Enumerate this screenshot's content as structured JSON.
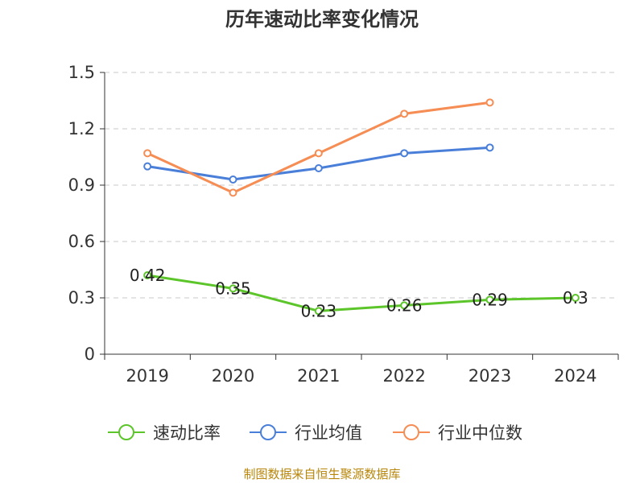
{
  "chart_data": {
    "type": "line",
    "title": "历年速动比率变化情况",
    "categories": [
      "2019",
      "2020",
      "2021",
      "2022",
      "2023",
      "2024"
    ],
    "ylim": [
      0,
      1.5
    ],
    "yticks": [
      "0",
      "0.3",
      "0.6",
      "0.9",
      "1.2",
      "1.5"
    ],
    "grid": true,
    "legend_position": "bottom",
    "series": [
      {
        "name": "速动比率",
        "color": "#5cc52a",
        "values": [
          0.42,
          0.35,
          0.23,
          0.26,
          0.29,
          0.3
        ],
        "labels": [
          "0.42",
          "0.35",
          "0.23",
          "0.26",
          "0.29",
          "0.3"
        ]
      },
      {
        "name": "行业均值",
        "color": "#4a7fd9",
        "values": [
          1.0,
          0.93,
          0.99,
          1.07,
          1.1,
          null
        ]
      },
      {
        "name": "行业中位数",
        "color": "#f58d54",
        "values": [
          1.07,
          0.86,
          1.07,
          1.28,
          1.34,
          null
        ]
      }
    ]
  },
  "source_text": "制图数据来自恒生聚源数据库"
}
